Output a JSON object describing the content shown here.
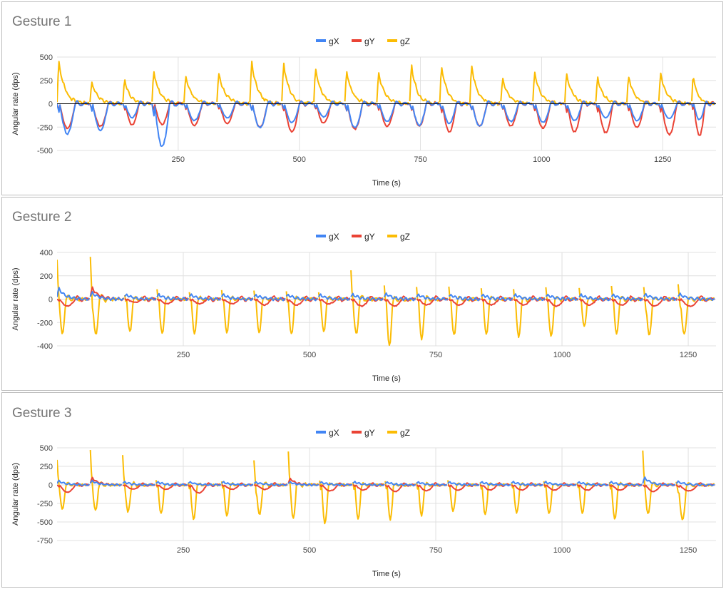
{
  "colors": {
    "gX": "#4285f4",
    "gY": "#ea4335",
    "gZ": "#fbbc04",
    "grid": "#e0e0e0",
    "zeroline": "#000000"
  },
  "chart_data": [
    {
      "type": "line",
      "title": "Gesture 1",
      "xlabel": "Time (s)",
      "ylabel": "Angular rate (dps)",
      "xlim": [
        0,
        1360
      ],
      "ylim": [
        -500,
        500
      ],
      "xticks": [
        250,
        500,
        750,
        1000,
        1250
      ],
      "yticks": [
        -500,
        -250,
        0,
        250,
        500
      ],
      "legend": "top",
      "grid": true,
      "gesture_starts": [
        0,
        68,
        136,
        196,
        262,
        330,
        398,
        464,
        530,
        594,
        660,
        728,
        790,
        852,
        916,
        982,
        1048,
        1112,
        1176,
        1242,
        1310
      ],
      "series": [
        {
          "name": "gX",
          "color_key": "gX",
          "event_peaks": [
            -320,
            -280,
            -150,
            -460,
            -180,
            -150,
            -260,
            -200,
            -140,
            -260,
            -190,
            -230,
            -210,
            -240,
            -190,
            -200,
            -180,
            -150,
            -180,
            -160,
            -170
          ]
        },
        {
          "name": "gY",
          "color_key": "gY",
          "event_peaks": [
            -260,
            -240,
            -230,
            -220,
            -230,
            -210,
            -250,
            -300,
            -210,
            -270,
            -240,
            -240,
            -300,
            -240,
            -240,
            -260,
            -300,
            -310,
            -250,
            -330,
            -340
          ]
        },
        {
          "name": "gZ",
          "color_key": "gZ",
          "event_peaks": [
            470,
            240,
            270,
            360,
            300,
            340,
            460,
            440,
            390,
            360,
            340,
            430,
            420,
            420,
            280,
            350,
            340,
            290,
            300,
            330,
            310
          ]
        }
      ]
    },
    {
      "type": "line",
      "title": "Gesture 2",
      "xlabel": "Time (s)",
      "ylabel": "Angular rate (dps)",
      "xlim": [
        0,
        1305
      ],
      "ylim": [
        -400,
        400
      ],
      "xticks": [
        250,
        500,
        750,
        1000,
        1250
      ],
      "yticks": [
        -400,
        -200,
        0,
        200,
        400
      ],
      "legend": "top",
      "grid": true,
      "gesture_starts": [
        0,
        66,
        134,
        198,
        262,
        326,
        390,
        454,
        518,
        582,
        648,
        712,
        776,
        840,
        904,
        968,
        1034,
        1098,
        1162,
        1230
      ],
      "series": [
        {
          "name": "gX",
          "color_key": "gX",
          "event_peaks": [
            100,
            60,
            40,
            40,
            40,
            40,
            40,
            40,
            40,
            40,
            50,
            40,
            40,
            40,
            40,
            40,
            40,
            40,
            40,
            40
          ]
        },
        {
          "name": "gY",
          "color_key": "gY",
          "event_peaks": [
            -60,
            100,
            -30,
            -40,
            -40,
            -40,
            -50,
            -50,
            -40,
            -60,
            -60,
            -50,
            -50,
            -50,
            -50,
            -60,
            -50,
            -50,
            -60,
            -60
          ]
        },
        {
          "name": "gZ",
          "color_key": "gZ",
          "event_peaks": [
            -290,
            -300,
            -280,
            -300,
            -300,
            -290,
            -290,
            -300,
            -280,
            -300,
            -400,
            -340,
            -310,
            -300,
            -320,
            -320,
            -230,
            -300,
            -310,
            -300
          ],
          "event_positive_peaks": [
            340,
            370,
            40,
            80,
            60,
            80,
            80,
            60,
            60,
            240,
            120,
            110,
            100,
            100,
            90,
            100,
            90,
            110,
            100,
            120
          ]
        }
      ]
    },
    {
      "type": "line",
      "title": "Gesture 3",
      "xlabel": "Time (s)",
      "ylabel": "Angular rate (dps)",
      "xlim": [
        0,
        1305
      ],
      "ylim": [
        -750,
        500
      ],
      "xticks": [
        250,
        500,
        750,
        1000,
        1250
      ],
      "yticks": [
        -750,
        -500,
        -250,
        0,
        250,
        500
      ],
      "legend": "top",
      "grid": true,
      "gesture_starts": [
        0,
        66,
        130,
        196,
        260,
        326,
        390,
        458,
        520,
        586,
        650,
        712,
        774,
        838,
        900,
        964,
        1030,
        1094,
        1160,
        1226
      ],
      "series": [
        {
          "name": "gX",
          "color_key": "gX",
          "event_peaks": [
            60,
            60,
            40,
            40,
            40,
            40,
            40,
            40,
            40,
            40,
            40,
            40,
            40,
            40,
            40,
            40,
            40,
            40,
            100,
            40
          ]
        },
        {
          "name": "gY",
          "color_key": "gY",
          "event_peaks": [
            -100,
            100,
            -60,
            -60,
            -110,
            -60,
            -60,
            90,
            -80,
            -70,
            -90,
            -80,
            -70,
            -70,
            -70,
            -70,
            -70,
            -70,
            -90,
            -80
          ]
        },
        {
          "name": "gZ",
          "color_key": "gZ",
          "event_peaks": [
            -320,
            -340,
            -360,
            -390,
            -470,
            -420,
            -400,
            -450,
            -520,
            -450,
            -470,
            -410,
            -360,
            -400,
            -380,
            -380,
            -380,
            -460,
            -390,
            -470
          ],
          "event_positive_peaks": [
            340,
            480,
            400,
            60,
            40,
            50,
            340,
            460,
            50,
            40,
            40,
            40,
            60,
            40,
            40,
            40,
            40,
            40,
            460,
            40
          ]
        }
      ]
    }
  ]
}
